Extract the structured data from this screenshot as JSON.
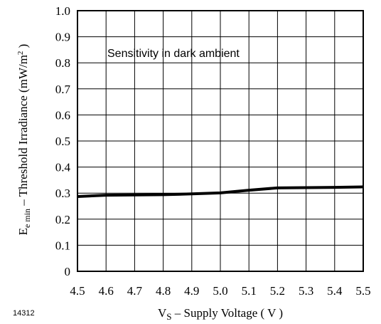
{
  "chart_data": {
    "type": "line",
    "title": "",
    "xlabel_main": "V",
    "xlabel_sub": "S",
    "xlabel_rest": " – Supply Voltage ( V )",
    "ylabel_main": "E",
    "ylabel_sub": "e min",
    "ylabel_rest": "  – Threshold Irradiance (mW/m",
    "ylabel_sup": "2",
    "ylabel_end": " )",
    "annotation": "Sensitivity in dark ambient",
    "figure_id": "14312",
    "xlim": [
      4.5,
      5.5
    ],
    "ylim": [
      0,
      1.0
    ],
    "grid": true,
    "x_ticks": [
      "4.5",
      "4.6",
      "4.7",
      "4.8",
      "4.9",
      "5.0",
      "5.1",
      "5.2",
      "5.3",
      "5.4",
      "5.5"
    ],
    "y_ticks": [
      "0",
      "0.1",
      "0.2",
      "0.3",
      "0.4",
      "0.5",
      "0.6",
      "0.7",
      "0.8",
      "0.9",
      "1.0"
    ],
    "series": [
      {
        "x": [
          4.5,
          4.6,
          4.7,
          4.8,
          4.9,
          5.0,
          5.1,
          5.2,
          5.3,
          5.4,
          5.5
        ],
        "y": [
          0.287,
          0.292,
          0.293,
          0.294,
          0.297,
          0.301,
          0.311,
          0.32,
          0.321,
          0.322,
          0.324
        ],
        "color": "#000000"
      }
    ]
  }
}
